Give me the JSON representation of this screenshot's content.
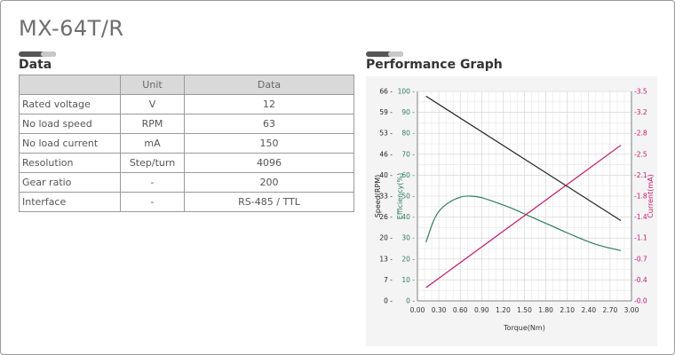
{
  "header": {
    "title": "MX-64T/R"
  },
  "data_section": {
    "heading": "Data",
    "columns": [
      "",
      "Unit",
      "Data"
    ],
    "rows": [
      [
        "Rated voltage",
        "V",
        "12"
      ],
      [
        "No load speed",
        "RPM",
        "63"
      ],
      [
        "No load current",
        "mA",
        "150"
      ],
      [
        "Resolution",
        "Step/turn",
        "4096"
      ],
      [
        "Gear ratio",
        "-",
        "200"
      ],
      [
        "Interface",
        "-",
        "RS-485 / TTL"
      ]
    ]
  },
  "graph_section": {
    "heading": "Performance Graph"
  },
  "colors": {
    "speed": "#222222",
    "efficiency": "#2e7d5b",
    "current": "#c0166b",
    "grid": "#d8d8d8",
    "panel": "#f4f4f4"
  },
  "chart_data": {
    "type": "line",
    "xlabel": "Torque(Nm)",
    "x_ticks": [
      "0.00",
      "0.30",
      "0.60",
      "0.90",
      "1.20",
      "1.50",
      "1.80",
      "2.10",
      "2.40",
      "2.70",
      "3.00"
    ],
    "xlim": [
      0,
      3.0
    ],
    "axes": {
      "speed": {
        "label": "Speed(RPM)",
        "ticks": [
          "0",
          "7",
          "13",
          "20",
          "26",
          "33",
          "40",
          "46",
          "53",
          "59",
          "66"
        ],
        "ylim": [
          0,
          66
        ]
      },
      "efficiency": {
        "label": "Efficiency(%)",
        "ticks": [
          "0",
          "10",
          "20",
          "30",
          "40",
          "50",
          "60",
          "70",
          "80",
          "90",
          "100"
        ],
        "ylim": [
          0,
          100
        ]
      },
      "current": {
        "label": "Current(mA)",
        "ticks": [
          "0.0",
          "0.4",
          "0.7",
          "1.1",
          "1.4",
          "1.8",
          "2.1",
          "2.5",
          "2.8",
          "3.2",
          "3.5"
        ],
        "ylim": [
          0,
          3.5
        ]
      }
    },
    "series": [
      {
        "axis": "speed",
        "x": [
          0.12,
          2.85
        ],
        "y": [
          64.5,
          25.3
        ]
      },
      {
        "axis": "efficiency",
        "x": [
          0.12,
          0.25,
          0.4,
          0.6,
          0.75,
          0.9,
          1.1,
          1.3,
          1.6,
          1.9,
          2.2,
          2.5,
          2.85
        ],
        "y": [
          28,
          40,
          46,
          49.5,
          50,
          49.3,
          47,
          44.5,
          40,
          35.5,
          31,
          27,
          24
        ]
      },
      {
        "axis": "current",
        "x": [
          0.12,
          2.85
        ],
        "y": [
          0.22,
          2.6
        ]
      }
    ]
  }
}
